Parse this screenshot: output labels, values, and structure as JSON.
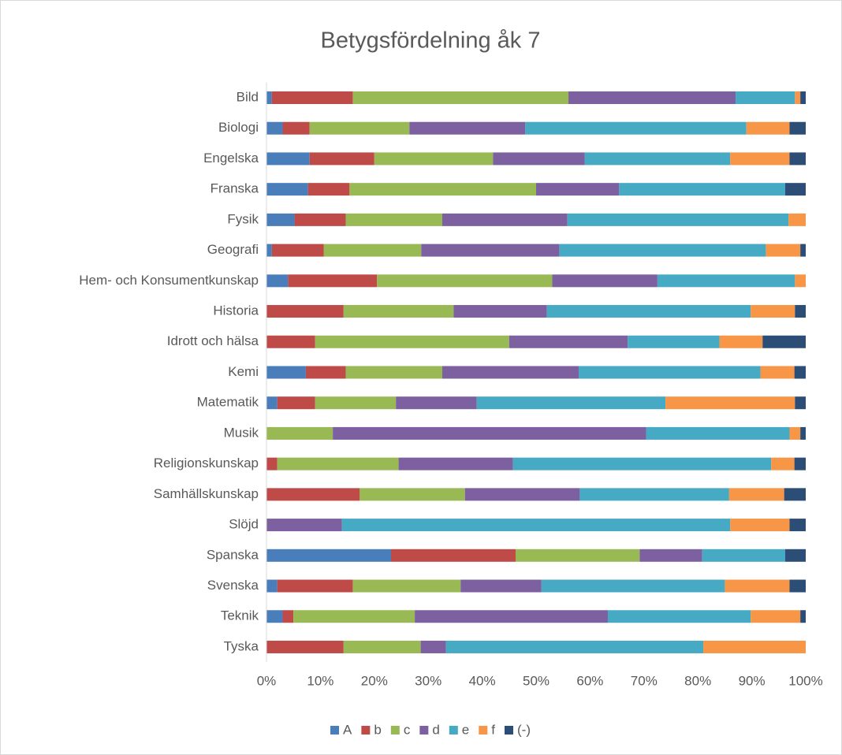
{
  "chart_data": {
    "type": "stacked-barh",
    "title": "Betygsfördelning åk 7",
    "categories": [
      "Bild",
      "Biologi",
      "Engelska",
      "Franska",
      "Fysik",
      "Geografi",
      "Hem- och Konsumentkunskap",
      "Historia",
      "Idrott och hälsa",
      "Kemi",
      "Matematik",
      "Musik",
      "Religionskunskap",
      "Samhällskunskap",
      "Slöjd",
      "Spanska",
      "Svenska",
      "Teknik",
      "Tyska"
    ],
    "series": [
      {
        "name": "A",
        "color": "#4a7ebb",
        "values": [
          1,
          3,
          8,
          7.7,
          5.2,
          1,
          4,
          0,
          0,
          7.3,
          2,
          0,
          0,
          0,
          0,
          23.1,
          2,
          3,
          0
        ]
      },
      {
        "name": "b",
        "color": "#be4b48",
        "values": [
          15,
          5,
          12,
          7.7,
          9.5,
          9.6,
          16.5,
          14.3,
          9,
          7.4,
          7,
          0,
          2,
          17.3,
          0,
          23.1,
          14,
          2,
          14.3
        ]
      },
      {
        "name": "c",
        "color": "#98b954",
        "values": [
          40,
          18.5,
          22,
          34.6,
          17.9,
          18.1,
          32.5,
          20.4,
          36,
          17.9,
          15,
          12.3,
          22.5,
          19.5,
          0,
          23,
          20,
          22.5,
          14.3
        ]
      },
      {
        "name": "d",
        "color": "#7d60a0",
        "values": [
          31,
          21.5,
          17,
          15.4,
          23.2,
          25.6,
          19.5,
          17.3,
          22,
          25.3,
          15,
          58.1,
          21.2,
          21.3,
          14,
          11.6,
          15,
          35.8,
          4.7
        ]
      },
      {
        "name": "e",
        "color": "#46aac5",
        "values": [
          11,
          41,
          27,
          30.8,
          41,
          38.3,
          25.5,
          37.8,
          17,
          33.7,
          35,
          26.6,
          47.9,
          27.7,
          72,
          15.4,
          34,
          26.5,
          47.7
        ]
      },
      {
        "name": "f",
        "color": "#f79646",
        "values": [
          1,
          8,
          11,
          0,
          3.2,
          6.4,
          2,
          8.2,
          8,
          6.3,
          24,
          2,
          4.3,
          10.2,
          11,
          0,
          12,
          9.2,
          19
        ]
      },
      {
        "name": "(-)",
        "color": "#2c4d75",
        "values": [
          1,
          3,
          3,
          3.8,
          0,
          1,
          0,
          2,
          8,
          2.1,
          2,
          1,
          2.1,
          4,
          3,
          3.8,
          3,
          1,
          0
        ]
      }
    ],
    "xlim": [
      0,
      100
    ],
    "xticks": [
      {
        "value": 0,
        "label": "0%"
      },
      {
        "value": 10,
        "label": "10%"
      },
      {
        "value": 20,
        "label": "20%"
      },
      {
        "value": 30,
        "label": "30%"
      },
      {
        "value": 40,
        "label": "40%"
      },
      {
        "value": 50,
        "label": "50%"
      },
      {
        "value": 60,
        "label": "60%"
      },
      {
        "value": 70,
        "label": "70%"
      },
      {
        "value": 80,
        "label": "80%"
      },
      {
        "value": 90,
        "label": "90%"
      },
      {
        "value": 100,
        "label": "100%"
      }
    ],
    "legend": "bottom"
  }
}
